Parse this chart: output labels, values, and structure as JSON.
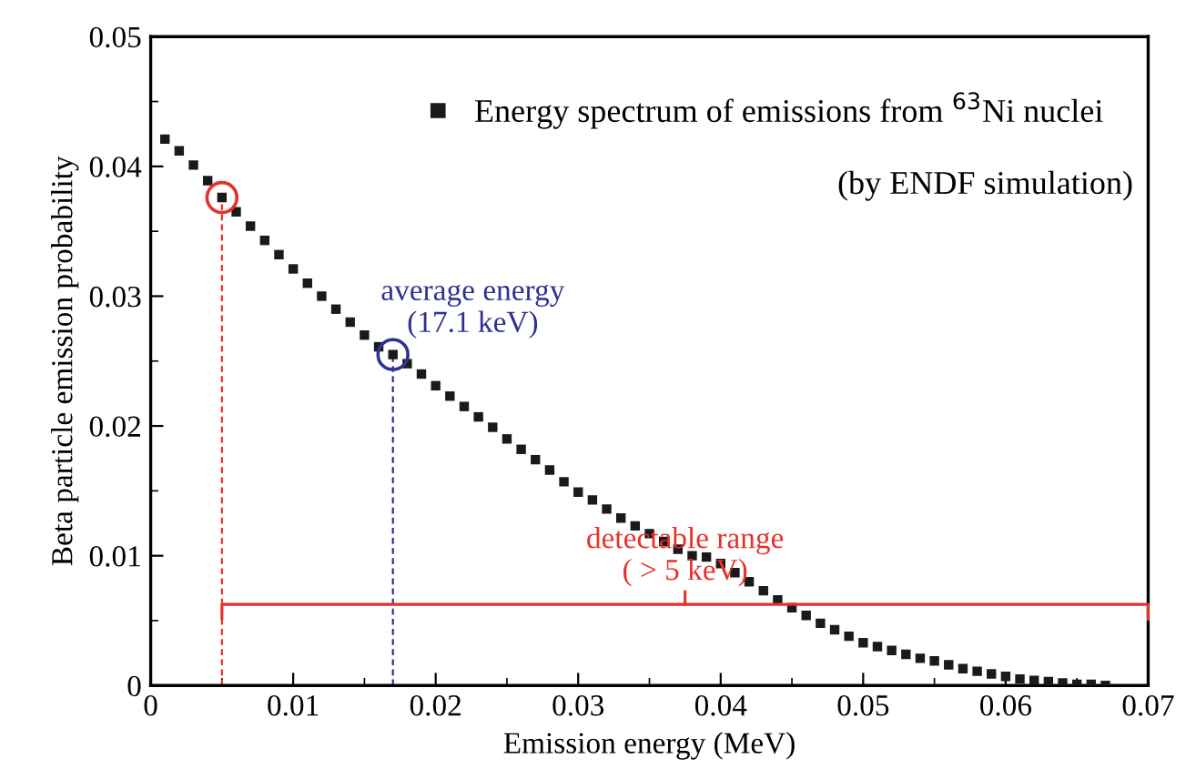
{
  "chart_data": {
    "type": "scatter",
    "xlabel": "Emission energy (MeV)",
    "ylabel": "Beta particle emission probability",
    "x": [
      0.001,
      0.002,
      0.003,
      0.004,
      0.005,
      0.006,
      0.007,
      0.008,
      0.009,
      0.01,
      0.011,
      0.012,
      0.013,
      0.014,
      0.015,
      0.016,
      0.017,
      0.018,
      0.019,
      0.02,
      0.021,
      0.022,
      0.023,
      0.024,
      0.025,
      0.026,
      0.027,
      0.028,
      0.029,
      0.03,
      0.031,
      0.032,
      0.033,
      0.034,
      0.035,
      0.036,
      0.037,
      0.038,
      0.039,
      0.04,
      0.041,
      0.042,
      0.043,
      0.044,
      0.045,
      0.046,
      0.047,
      0.048,
      0.049,
      0.05,
      0.051,
      0.052,
      0.053,
      0.054,
      0.055,
      0.056,
      0.057,
      0.058,
      0.059,
      0.06,
      0.061,
      0.062,
      0.063,
      0.064,
      0.065,
      0.066,
      0.067
    ],
    "series": [
      {
        "name": "Energy spectrum of emissions from $^{63}$Ni nuclei",
        "color": "#1a1a1a",
        "values": [
          0.0421,
          0.0412,
          0.0401,
          0.0389,
          0.0376,
          0.0365,
          0.0354,
          0.0343,
          0.0332,
          0.0321,
          0.031,
          0.03,
          0.029,
          0.028,
          0.027,
          0.0261,
          0.0255,
          0.0248,
          0.024,
          0.0231,
          0.0223,
          0.0215,
          0.0207,
          0.0199,
          0.019,
          0.0182,
          0.0174,
          0.0166,
          0.0157,
          0.0149,
          0.0143,
          0.0136,
          0.0129,
          0.0123,
          0.0117,
          0.0111,
          0.0105,
          0.01,
          0.0099,
          0.0094,
          0.0087,
          0.008,
          0.0073,
          0.0066,
          0.006,
          0.0054,
          0.0048,
          0.0043,
          0.0038,
          0.0033,
          0.003,
          0.0027,
          0.0024,
          0.0021,
          0.0019,
          0.0016,
          0.0013,
          0.0011,
          0.0009,
          0.0007,
          0.0005,
          0.0004,
          0.0003,
          0.0002,
          0.0001,
          0.0001,
          0.0
        ]
      }
    ],
    "xlim": [
      0,
      0.07
    ],
    "xticks": [
      0,
      0.01,
      0.02,
      0.03,
      0.04,
      0.05,
      0.06,
      0.07
    ],
    "ylim": [
      0,
      0.05
    ],
    "yticks": [
      0,
      0.01,
      0.02,
      0.03,
      0.04,
      0.05
    ],
    "marker": "square",
    "legend": "top right",
    "grid": false,
    "ref_lines": [
      {
        "axis": "x",
        "value": 0.005,
        "color": "#e8302a",
        "line_style": "dashed"
      },
      {
        "axis": "x",
        "value": 0.017,
        "color": "#2e3192",
        "line_style": "dashed",
        "label": "average energy\n(17.1 keV)"
      }
    ],
    "annotations": [
      "detectable range\n( > 5 keV)",
      "(by ENDF simulation)"
    ]
  }
}
